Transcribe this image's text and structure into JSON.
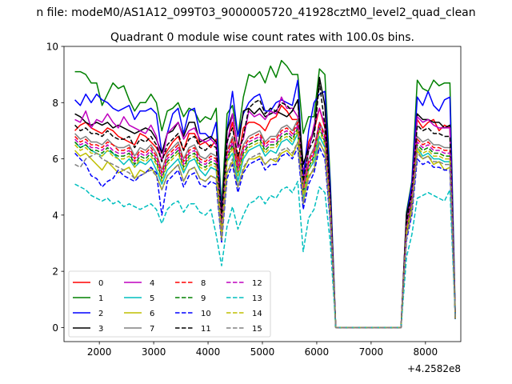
{
  "suptitle": "n file: modeM0/AS1A12_099T03_9000005720_41928cztM0_level2_quad_clean",
  "chart_data": {
    "type": "line",
    "title": "Quadrant 0 module wise count rates with 100.0s bins.",
    "xlabel": "",
    "ylabel": "",
    "x_offset_label": "+4.2582e8",
    "xlim": [
      1350,
      8650
    ],
    "ylim": [
      -0.5,
      10.0
    ],
    "xticks": [
      2000,
      3000,
      4000,
      5000,
      6000,
      7000,
      8000
    ],
    "yticks": [
      0,
      2,
      4,
      6,
      8,
      10
    ],
    "legend": {
      "placement": "lower-left",
      "columns": 4
    },
    "x": [
      1550,
      1650,
      1750,
      1850,
      1950,
      2050,
      2150,
      2250,
      2350,
      2450,
      2550,
      2650,
      2750,
      2850,
      2950,
      3050,
      3150,
      3250,
      3350,
      3450,
      3550,
      3650,
      3750,
      3850,
      3950,
      4050,
      4150,
      4250,
      4350,
      4450,
      4550,
      4650,
      4750,
      4850,
      4950,
      5050,
      5150,
      5250,
      5350,
      5450,
      5550,
      5650,
      5750,
      5850,
      5950,
      6050,
      6150,
      6250,
      6350,
      7550,
      7650,
      7750,
      7850,
      7950,
      8050,
      8150,
      8250,
      8350,
      8450,
      8550
    ],
    "series": [
      {
        "name": "0",
        "color": "#ff0000",
        "dash": false,
        "base": [
          7.0,
          7.2,
          7.3,
          7.1,
          7.0,
          6.9,
          7.1,
          7.0,
          6.8,
          6.7,
          6.6,
          6.5,
          6.9,
          6.8,
          6.6,
          6.4,
          6.0,
          6.3,
          6.6,
          6.8,
          6.3,
          6.9,
          6.9,
          6.5,
          6.6,
          6.4,
          6.7,
          4.0,
          6.6,
          7.3,
          5.9,
          7.1,
          7.3,
          7.3,
          7.2,
          7.0,
          7.4,
          7.5,
          7.9,
          7.7,
          7.4,
          7.4,
          5.5,
          6.6,
          7.0,
          7.8,
          7.1,
          4.5,
          0,
          0,
          4.0,
          5.0,
          7.4,
          7.1,
          7.3,
          7.4,
          7.0,
          7.2,
          7.1,
          0.3
        ]
      },
      {
        "name": "1",
        "color": "#008000",
        "dash": false,
        "base": [
          9.1,
          9.1,
          9.0,
          8.7,
          8.7,
          7.9,
          8.3,
          8.7,
          8.5,
          8.6,
          8.1,
          7.7,
          8.0,
          8.0,
          8.3,
          8.0,
          7.0,
          7.7,
          7.8,
          8.0,
          7.5,
          7.8,
          7.7,
          7.3,
          7.5,
          7.4,
          7.8,
          4.3,
          7.6,
          7.9,
          6.8,
          8.2,
          9.0,
          8.9,
          9.1,
          8.7,
          9.3,
          8.9,
          9.5,
          9.3,
          9.0,
          9.0,
          6.9,
          7.5,
          7.5,
          9.2,
          9.0,
          5.2,
          0,
          0,
          4.1,
          5.2,
          8.8,
          8.5,
          8.4,
          8.8,
          8.6,
          8.7,
          8.7,
          0.4
        ]
      },
      {
        "name": "2",
        "color": "#0000ff",
        "dash": false,
        "base": [
          8.1,
          7.9,
          8.3,
          8.0,
          8.3,
          8.1,
          8.0,
          7.8,
          7.7,
          7.8,
          7.9,
          7.4,
          7.7,
          7.7,
          7.8,
          7.6,
          6.2,
          6.9,
          7.6,
          7.8,
          6.9,
          7.7,
          7.8,
          6.9,
          6.9,
          6.7,
          7.3,
          4.1,
          7.0,
          8.4,
          6.8,
          7.6,
          8.0,
          8.2,
          8.3,
          7.7,
          7.7,
          8.0,
          8.1,
          8.0,
          7.9,
          8.8,
          5.3,
          7.0,
          8.0,
          8.3,
          8.4,
          5.0,
          0,
          0,
          4.0,
          5.1,
          8.2,
          7.9,
          8.4,
          7.9,
          7.7,
          8.1,
          8.2,
          0.3
        ]
      },
      {
        "name": "3",
        "color": "#000000",
        "dash": false,
        "base": [
          7.6,
          7.5,
          7.3,
          7.2,
          7.3,
          7.2,
          7.3,
          7.1,
          7.2,
          7.1,
          7.0,
          6.9,
          7.0,
          7.1,
          7.0,
          6.7,
          6.2,
          6.9,
          7.0,
          7.3,
          6.8,
          7.3,
          7.3,
          6.6,
          6.7,
          6.8,
          6.6,
          4.0,
          7.0,
          7.6,
          6.4,
          7.7,
          7.8,
          7.6,
          7.8,
          7.5,
          7.6,
          7.7,
          7.6,
          7.5,
          7.7,
          8.1,
          5.8,
          6.4,
          7.0,
          8.9,
          7.9,
          4.6,
          0,
          0,
          4.0,
          4.8,
          7.6,
          7.4,
          7.4,
          7.3,
          7.3,
          7.1,
          7.2,
          0.3
        ]
      },
      {
        "name": "4",
        "color": "#bf00bf",
        "dash": false,
        "base": [
          7.4,
          7.3,
          7.7,
          7.1,
          7.4,
          7.3,
          7.6,
          7.3,
          7.1,
          7.5,
          7.2,
          7.1,
          7.0,
          6.9,
          7.2,
          6.8,
          5.9,
          6.9,
          7.1,
          7.3,
          6.7,
          7.0,
          7.1,
          6.7,
          6.6,
          6.7,
          6.5,
          3.7,
          6.5,
          7.6,
          6.4,
          6.7,
          7.7,
          7.5,
          7.6,
          7.4,
          7.7,
          7.6,
          8.2,
          7.8,
          7.8,
          7.5,
          5.2,
          6.3,
          7.2,
          7.8,
          7.2,
          4.4,
          0,
          0,
          3.7,
          4.8,
          7.5,
          7.3,
          7.4,
          7.2,
          7.1,
          7.1,
          7.1,
          0.3
        ]
      },
      {
        "name": "5",
        "color": "#00bfbf",
        "dash": false,
        "base": [
          6.6,
          6.4,
          6.5,
          6.3,
          6.2,
          6.1,
          6.3,
          6.2,
          6.0,
          5.8,
          6.0,
          5.7,
          5.9,
          5.8,
          6.0,
          5.6,
          5.1,
          5.6,
          5.8,
          6.0,
          5.5,
          5.9,
          6.0,
          5.6,
          5.4,
          5.7,
          5.6,
          3.3,
          5.9,
          6.2,
          5.2,
          6.0,
          6.3,
          6.4,
          6.5,
          6.1,
          6.3,
          6.2,
          6.6,
          6.7,
          6.5,
          6.9,
          4.6,
          5.6,
          5.9,
          6.8,
          6.4,
          4.0,
          0,
          0,
          3.4,
          4.4,
          6.4,
          6.1,
          6.2,
          6.0,
          6.0,
          5.9,
          5.9,
          0.3
        ]
      },
      {
        "name": "6",
        "color": "#bfbf00",
        "dash": false,
        "base": [
          6.3,
          6.1,
          6.2,
          6.0,
          5.8,
          5.6,
          5.9,
          5.7,
          5.5,
          5.6,
          5.7,
          5.3,
          5.6,
          5.5,
          5.7,
          5.4,
          4.9,
          5.4,
          5.6,
          5.8,
          5.2,
          5.6,
          5.7,
          5.3,
          5.2,
          5.4,
          5.3,
          3.1,
          5.5,
          5.9,
          5.0,
          5.6,
          6.0,
          6.0,
          6.1,
          5.8,
          6.0,
          5.9,
          6.2,
          6.3,
          6.1,
          6.6,
          4.4,
          5.4,
          5.6,
          6.6,
          6.2,
          3.8,
          0,
          0,
          3.2,
          4.2,
          6.3,
          6.0,
          6.1,
          5.8,
          5.9,
          5.6,
          5.7,
          0.3
        ]
      },
      {
        "name": "7",
        "color": "#808080",
        "dash": false,
        "base": [
          6.9,
          6.7,
          6.8,
          6.6,
          6.6,
          6.5,
          6.7,
          6.5,
          6.4,
          6.4,
          6.5,
          6.1,
          6.4,
          6.3,
          6.5,
          6.2,
          5.6,
          6.2,
          6.4,
          6.6,
          6.0,
          6.4,
          6.5,
          6.1,
          6.0,
          6.2,
          6.1,
          3.6,
          6.3,
          6.8,
          5.8,
          6.5,
          6.8,
          6.9,
          7.0,
          6.6,
          6.8,
          6.8,
          7.1,
          7.2,
          7.0,
          7.4,
          5.0,
          6.0,
          6.4,
          7.3,
          6.9,
          4.3,
          0,
          0,
          3.6,
          4.6,
          6.8,
          6.6,
          6.7,
          6.5,
          6.5,
          6.4,
          6.4,
          0.3
        ]
      },
      {
        "name": "8",
        "color": "#ff0000",
        "dash": true,
        "base": [
          6.8,
          6.6,
          6.7,
          6.5,
          6.5,
          6.4,
          6.6,
          6.5,
          6.3,
          6.3,
          6.4,
          6.0,
          6.3,
          6.2,
          6.4,
          6.1,
          5.5,
          6.1,
          6.3,
          6.5,
          5.9,
          6.3,
          6.4,
          6.0,
          5.9,
          6.1,
          6.0,
          3.5,
          6.2,
          6.7,
          5.7,
          6.4,
          6.7,
          6.8,
          6.9,
          6.5,
          6.7,
          6.7,
          7.0,
          7.1,
          6.9,
          7.3,
          4.9,
          5.9,
          6.3,
          7.3,
          6.8,
          4.2,
          0,
          0,
          3.5,
          4.5,
          6.7,
          6.5,
          6.6,
          6.4,
          6.4,
          6.3,
          6.3,
          0.3
        ]
      },
      {
        "name": "9",
        "color": "#008000",
        "dash": true,
        "base": [
          6.6,
          6.4,
          6.5,
          6.3,
          6.3,
          6.2,
          6.4,
          6.2,
          6.1,
          6.1,
          6.2,
          5.8,
          6.1,
          6.0,
          6.2,
          5.9,
          5.3,
          5.9,
          6.1,
          6.3,
          5.7,
          6.1,
          6.2,
          5.8,
          5.7,
          5.9,
          5.8,
          3.4,
          6.0,
          6.5,
          5.5,
          6.2,
          6.5,
          6.6,
          6.7,
          6.3,
          6.5,
          6.5,
          6.8,
          6.9,
          6.7,
          7.1,
          4.8,
          5.7,
          6.1,
          7.1,
          6.6,
          4.1,
          0,
          0,
          3.4,
          4.4,
          6.5,
          6.3,
          6.4,
          6.2,
          6.2,
          6.1,
          6.1,
          0.3
        ]
      },
      {
        "name": "10",
        "color": "#0000ff",
        "dash": true,
        "base": [
          6.2,
          6.0,
          5.8,
          5.4,
          5.3,
          5.0,
          5.2,
          5.3,
          5.6,
          5.4,
          5.3,
          5.2,
          5.4,
          5.5,
          5.7,
          5.5,
          4.0,
          5.2,
          5.4,
          5.6,
          5.0,
          5.4,
          5.5,
          5.1,
          5.0,
          5.2,
          5.1,
          3.0,
          5.3,
          5.8,
          4.8,
          5.5,
          5.8,
          5.9,
          6.0,
          5.6,
          5.8,
          5.8,
          6.1,
          6.2,
          6.0,
          6.4,
          4.2,
          5.1,
          5.5,
          6.4,
          6.0,
          3.7,
          0,
          0,
          3.1,
          4.0,
          6.0,
          5.8,
          5.9,
          5.7,
          5.7,
          5.6,
          5.6,
          0.3
        ]
      },
      {
        "name": "11",
        "color": "#000000",
        "dash": true,
        "base": [
          7.2,
          7.0,
          7.1,
          6.9,
          6.9,
          6.8,
          7.0,
          6.8,
          6.7,
          6.7,
          6.8,
          6.4,
          6.7,
          6.6,
          6.8,
          6.5,
          5.9,
          6.5,
          6.7,
          6.9,
          6.3,
          6.7,
          6.8,
          6.4,
          6.3,
          6.5,
          6.4,
          3.8,
          6.6,
          7.1,
          6.1,
          6.8,
          7.8,
          8.0,
          8.1,
          7.6,
          7.8,
          7.7,
          8.0,
          7.9,
          7.7,
          8.1,
          5.2,
          6.3,
          6.7,
          8.7,
          7.2,
          4.5,
          0,
          0,
          3.7,
          4.8,
          7.2,
          7.0,
          7.1,
          6.9,
          6.9,
          6.8,
          6.8,
          0.3
        ]
      },
      {
        "name": "12",
        "color": "#bf00bf",
        "dash": true,
        "base": [
          6.7,
          6.5,
          6.6,
          6.4,
          6.4,
          6.3,
          6.5,
          6.3,
          6.2,
          6.2,
          6.3,
          5.9,
          6.2,
          6.1,
          6.3,
          6.0,
          5.4,
          6.0,
          6.2,
          6.4,
          5.8,
          6.2,
          6.3,
          5.9,
          5.8,
          6.0,
          5.9,
          3.5,
          6.1,
          6.6,
          5.6,
          6.3,
          6.6,
          6.7,
          6.8,
          6.4,
          6.6,
          6.6,
          6.9,
          7.0,
          6.8,
          7.2,
          4.8,
          5.8,
          6.2,
          7.2,
          6.7,
          4.2,
          0,
          0,
          3.5,
          4.5,
          6.6,
          6.4,
          6.5,
          6.3,
          6.3,
          6.2,
          6.2,
          0.3
        ]
      },
      {
        "name": "13",
        "color": "#00bfbf",
        "dash": true,
        "base": [
          5.1,
          5.0,
          4.9,
          4.7,
          4.6,
          4.5,
          4.6,
          4.4,
          4.5,
          4.3,
          4.4,
          4.3,
          4.2,
          4.3,
          4.4,
          4.2,
          3.7,
          4.2,
          4.4,
          4.5,
          4.1,
          4.4,
          4.4,
          4.1,
          4.0,
          4.2,
          3.3,
          2.2,
          3.6,
          4.3,
          3.5,
          4.0,
          4.4,
          4.5,
          4.7,
          4.4,
          4.7,
          4.6,
          4.9,
          5.0,
          4.8,
          5.2,
          2.7,
          3.9,
          4.2,
          5.0,
          4.8,
          3.0,
          0,
          0,
          2.5,
          3.3,
          4.6,
          4.7,
          4.8,
          4.7,
          4.6,
          4.5,
          4.9,
          0.3
        ]
      },
      {
        "name": "14",
        "color": "#bfbf00",
        "dash": true,
        "base": [
          6.5,
          6.3,
          6.4,
          6.2,
          6.2,
          6.1,
          6.3,
          6.1,
          6.0,
          6.0,
          6.1,
          5.7,
          6.0,
          5.9,
          6.1,
          5.8,
          5.2,
          5.8,
          6.0,
          6.2,
          5.6,
          6.0,
          6.1,
          5.7,
          5.6,
          5.8,
          5.7,
          3.3,
          5.9,
          6.4,
          5.4,
          6.1,
          6.4,
          6.5,
          6.6,
          6.2,
          6.4,
          6.4,
          6.7,
          6.8,
          6.6,
          7.0,
          4.7,
          5.6,
          6.0,
          7.0,
          6.5,
          4.1,
          0,
          0,
          3.4,
          4.3,
          6.4,
          6.2,
          6.3,
          6.1,
          6.1,
          6.0,
          6.0,
          0.3
        ]
      },
      {
        "name": "15",
        "color": "#808080",
        "dash": true,
        "base": [
          5.8,
          5.7,
          6.0,
          6.1,
          6.2,
          6.0,
          5.9,
          5.8,
          5.7,
          5.6,
          5.5,
          5.3,
          5.4,
          5.5,
          5.6,
          5.4,
          4.9,
          5.4,
          5.6,
          5.8,
          5.2,
          5.6,
          5.7,
          5.3,
          5.2,
          5.4,
          5.3,
          3.1,
          5.5,
          6.0,
          5.0,
          5.7,
          6.0,
          6.1,
          6.2,
          5.8,
          6.0,
          6.0,
          6.3,
          6.4,
          6.2,
          6.6,
          4.4,
          5.3,
          5.7,
          6.6,
          6.2,
          3.8,
          0,
          0,
          3.2,
          4.1,
          6.2,
          6.0,
          6.1,
          5.9,
          5.9,
          5.8,
          5.8,
          0.3
        ]
      }
    ]
  }
}
